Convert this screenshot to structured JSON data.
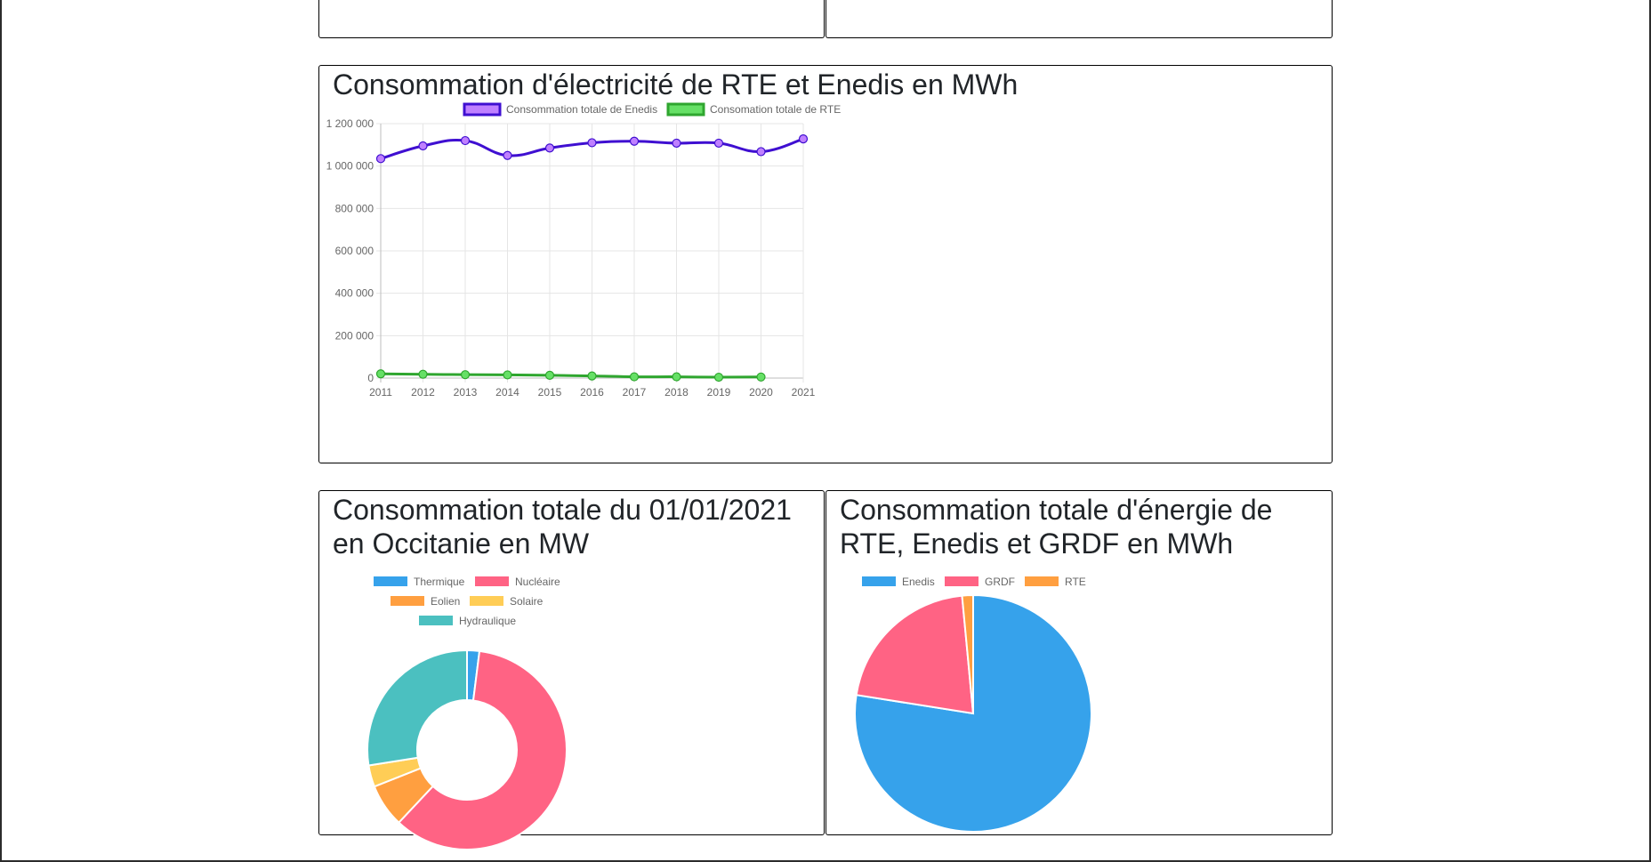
{
  "cards": {
    "line_title": "Consommation d'électricité de RTE et Enedis en MWh",
    "donut_title": "Consommation totale du 01/01/2021 en Occitanie en MW",
    "pie_title": "Consommation totale d'énergie de RTE, Enedis et GRDF en MWh"
  },
  "chart_data": [
    {
      "type": "line",
      "title": "Consommation d'électricité de RTE et Enedis en MWh",
      "categories": [
        "2011",
        "2012",
        "2013",
        "2014",
        "2015",
        "2016",
        "2017",
        "2018",
        "2019",
        "2020",
        "2021"
      ],
      "ylim": [
        0,
        1200000
      ],
      "yticks": [
        0,
        200000,
        400000,
        600000,
        800000,
        1000000,
        1200000
      ],
      "ytick_labels": [
        "0",
        "200 000",
        "400 000",
        "600 000",
        "800 000",
        "1 000 000",
        "1 200 000"
      ],
      "grid": true,
      "legend": "top",
      "series": [
        {
          "name": "Consommation totale de Enedis",
          "color": "#3f0fd1",
          "fill": "#bf80ff",
          "values": [
            1035000,
            1095000,
            1120000,
            1050000,
            1085000,
            1110000,
            1117000,
            1108000,
            1108000,
            1068000,
            1128000
          ]
        },
        {
          "name": "Consomation totale de RTE",
          "color": "#2fa62f",
          "fill": "#66e066",
          "values": [
            20000,
            18000,
            16000,
            15000,
            13000,
            10000,
            6000,
            6000,
            4000,
            5000,
            null
          ]
        }
      ]
    },
    {
      "type": "pie",
      "donut": true,
      "title": "Consommation totale du 01/01/2021 en Occitanie en MW",
      "legend": "top",
      "labels": [
        "Thermique",
        "Nucléaire",
        "Eolien",
        "Solaire",
        "Hydraulique"
      ],
      "values": [
        2,
        60,
        7,
        3.5,
        27.5
      ],
      "colors": [
        "#36a2eb",
        "#ff6384",
        "#ff9f40",
        "#ffcd56",
        "#4bc0c0"
      ]
    },
    {
      "type": "pie",
      "donut": false,
      "title": "Consommation totale d'énergie de RTE, Enedis et GRDF en MWh",
      "legend": "top",
      "labels": [
        "Enedis",
        "GRDF",
        "RTE"
      ],
      "values": [
        77.5,
        21,
        1.5
      ],
      "colors": [
        "#36a2eb",
        "#ff6384",
        "#ff9f40"
      ]
    }
  ]
}
